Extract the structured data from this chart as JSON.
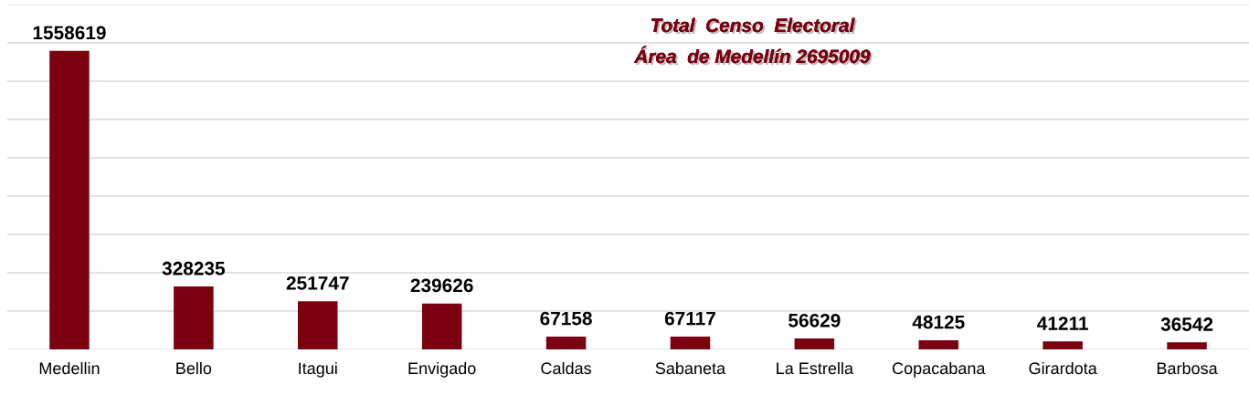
{
  "chart_data": {
    "type": "bar",
    "title": "Total  Censo  Electoral",
    "subtitle": "Área  de Medellín 2695009",
    "categories": [
      "Medellin",
      "Bello",
      "Itagui",
      "Envigado",
      "Caldas",
      "Sabaneta",
      "La Estrella",
      "Copacabana",
      "Girardota",
      "Barbosa"
    ],
    "values": [
      1558619,
      328235,
      251747,
      239626,
      67158,
      67117,
      56629,
      48125,
      41211,
      36542
    ],
    "color": "#7b0010",
    "ylim": [
      0,
      1800000
    ],
    "yticks": [
      {
        "value": 0,
        "label": null
      },
      {
        "value": 200000,
        "label": null
      },
      {
        "value": 400000,
        "label": null
      },
      {
        "value": 600000,
        "label": null
      },
      {
        "value": 800000,
        "label": null
      },
      {
        "value": 1000000,
        "label": null
      },
      {
        "value": 1200000,
        "label": null
      },
      {
        "value": 1400000,
        "label": null
      },
      {
        "value": 1600000,
        "label": null
      },
      {
        "value": 1800000,
        "label": null
      }
    ],
    "tick_labels": "x",
    "grid": "y",
    "data_labels": true,
    "legend": false
  }
}
